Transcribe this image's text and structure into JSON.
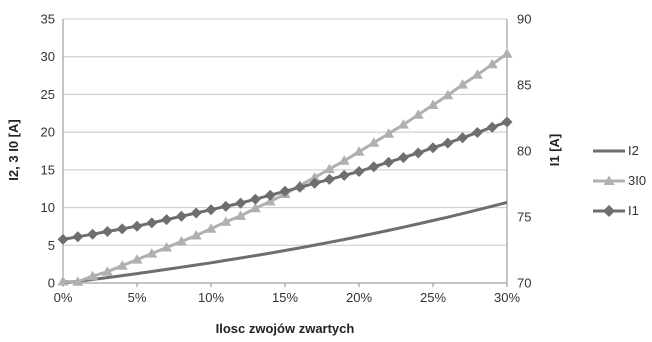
{
  "chart_data": {
    "type": "line",
    "title": "",
    "xlabel": "Ilosc zwojów zwartych",
    "ylabel_left": "I2, 3 I0 [A]",
    "ylabel_right": "I1 [A]",
    "x": [
      0,
      1,
      2,
      3,
      4,
      5,
      6,
      7,
      8,
      9,
      10,
      11,
      12,
      13,
      14,
      15,
      16,
      17,
      18,
      19,
      20,
      21,
      22,
      23,
      24,
      25,
      26,
      27,
      28,
      29,
      30
    ],
    "x_ticks": [
      "0%",
      "5%",
      "10%",
      "15%",
      "20%",
      "25%",
      "30%"
    ],
    "x_tick_values": [
      0,
      5,
      10,
      15,
      20,
      25,
      30
    ],
    "ylim_left": [
      0,
      35
    ],
    "yticks_left": [
      "0",
      "5",
      "10",
      "15",
      "20",
      "25",
      "30",
      "35"
    ],
    "ylim_right": [
      70,
      90
    ],
    "yticks_right": [
      "70",
      "75",
      "80",
      "85",
      "90"
    ],
    "grid": true,
    "legend_position": "right",
    "series": [
      {
        "name": "I2",
        "axis": "left",
        "marker": "none",
        "color": "#6e6e6e",
        "values": [
          0.0,
          0.23,
          0.47,
          0.72,
          0.98,
          1.25,
          1.52,
          1.8,
          2.09,
          2.38,
          2.68,
          2.99,
          3.31,
          3.63,
          3.97,
          4.31,
          4.66,
          5.02,
          5.39,
          5.77,
          6.16,
          6.56,
          6.98,
          7.4,
          7.83,
          8.28,
          8.73,
          9.2,
          9.69,
          10.18,
          10.69
        ]
      },
      {
        "name": "3I0",
        "axis": "left",
        "marker": "triangle",
        "color": "#b0b0b0",
        "values": [
          0.2,
          0.17,
          0.9,
          1.5,
          2.3,
          3.1,
          3.9,
          4.7,
          5.5,
          6.3,
          7.2,
          8.1,
          8.9,
          9.9,
          10.8,
          11.8,
          12.9,
          14.0,
          15.1,
          16.2,
          17.4,
          18.6,
          19.8,
          21.0,
          22.3,
          23.6,
          24.9,
          26.3,
          27.6,
          29.0,
          30.4
        ]
      },
      {
        "name": "I1",
        "axis": "right",
        "marker": "diamond",
        "color": "#6e6e6e",
        "values": [
          73.3,
          73.5,
          73.7,
          73.9,
          74.1,
          74.3,
          74.55,
          74.8,
          75.05,
          75.3,
          75.55,
          75.8,
          76.05,
          76.35,
          76.65,
          76.95,
          77.25,
          77.55,
          77.85,
          78.15,
          78.45,
          78.8,
          79.15,
          79.5,
          79.85,
          80.25,
          80.6,
          81.0,
          81.4,
          81.8,
          82.2
        ]
      }
    ]
  }
}
